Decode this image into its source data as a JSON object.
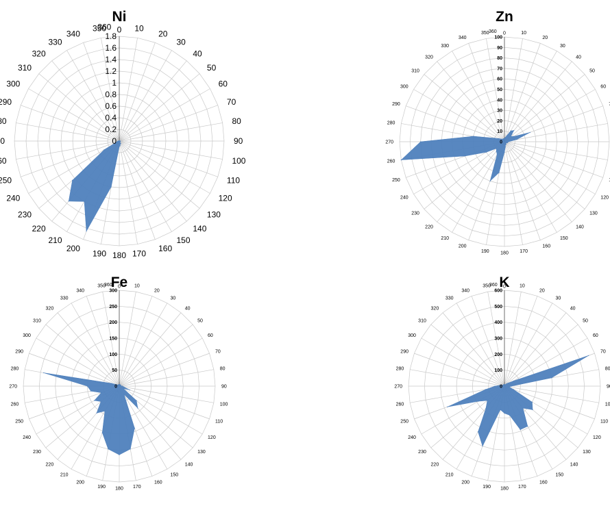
{
  "chart_data": [
    {
      "type": "radar",
      "title": "Ni",
      "categories": [
        "0",
        "10",
        "20",
        "30",
        "40",
        "50",
        "60",
        "70",
        "80",
        "90",
        "100",
        "110",
        "120",
        "130",
        "140",
        "150",
        "160",
        "170",
        "180",
        "190",
        "200",
        "210",
        "220",
        "230",
        "240",
        "250",
        "260",
        "270",
        "280",
        "290",
        "300",
        "310",
        "320",
        "330",
        "340",
        "350",
        "360"
      ],
      "rlim": [
        0,
        1.8
      ],
      "rticks": [
        "0",
        "0.2",
        "0.4",
        "0.6",
        "0.8",
        "1",
        "1.2",
        "1.4",
        "1.6",
        "1.8"
      ],
      "values": [
        0,
        0,
        0,
        0,
        0,
        0,
        0,
        0,
        0,
        0.02,
        0,
        0,
        0.02,
        0,
        0,
        0.05,
        0.05,
        0.08,
        0.1,
        0.8,
        1.65,
        1.2,
        1.35,
        1.05,
        0.3,
        0.05,
        0.03,
        0.02,
        0,
        0,
        0,
        0,
        0,
        0,
        0,
        0,
        0
      ]
    },
    {
      "type": "radar",
      "title": "Zn",
      "categories": [
        "0",
        "10",
        "20",
        "30",
        "40",
        "50",
        "60",
        "70",
        "80",
        "90",
        "100",
        "110",
        "120",
        "130",
        "140",
        "150",
        "160",
        "170",
        "180",
        "190",
        "200",
        "210",
        "220",
        "230",
        "240",
        "250",
        "260",
        "270",
        "280",
        "290",
        "300",
        "310",
        "320",
        "330",
        "340",
        "350",
        "360"
      ],
      "rlim": [
        0,
        100
      ],
      "rticks": [
        "0",
        "10",
        "20",
        "30",
        "40",
        "50",
        "60",
        "70",
        "80",
        "90",
        "100"
      ],
      "values": [
        3,
        4,
        6,
        12,
        14,
        8,
        10,
        26,
        12,
        4,
        3,
        3,
        2,
        2,
        2,
        3,
        3,
        5,
        10,
        30,
        40,
        14,
        12,
        10,
        20,
        40,
        100,
        80,
        30,
        10,
        6,
        4,
        3,
        3,
        3,
        3,
        3
      ]
    },
    {
      "type": "radar",
      "title": "Fe",
      "categories": [
        "0",
        "10",
        "20",
        "30",
        "40",
        "50",
        "60",
        "70",
        "80",
        "90",
        "100",
        "110",
        "120",
        "130",
        "140",
        "150",
        "160",
        "170",
        "180",
        "190",
        "200",
        "210",
        "220",
        "230",
        "240",
        "250",
        "260",
        "270",
        "280",
        "290",
        "300",
        "310",
        "320",
        "330",
        "340",
        "350",
        "360"
      ],
      "rlim": [
        0,
        300
      ],
      "rticks": [
        "0",
        "50",
        "100",
        "150",
        "200",
        "250",
        "300"
      ],
      "values": [
        5,
        5,
        5,
        5,
        5,
        5,
        5,
        5,
        5,
        10,
        15,
        35,
        15,
        70,
        90,
        30,
        140,
        200,
        215,
        200,
        155,
        90,
        110,
        75,
        90,
        60,
        90,
        100,
        240,
        25,
        10,
        5,
        5,
        5,
        5,
        5,
        5
      ]
    },
    {
      "type": "radar",
      "title": "K",
      "categories": [
        "0",
        "10",
        "20",
        "30",
        "40",
        "50",
        "60",
        "70",
        "80",
        "90",
        "100",
        "110",
        "120",
        "130",
        "140",
        "150",
        "160",
        "170",
        "180",
        "190",
        "200",
        "210",
        "220",
        "230",
        "240",
        "250",
        "260",
        "270",
        "280",
        "290",
        "300",
        "310",
        "320",
        "330",
        "340",
        "350",
        "360"
      ],
      "rlim": [
        0,
        600
      ],
      "rticks": [
        "0",
        "100",
        "200",
        "300",
        "400",
        "500",
        "600"
      ],
      "values": [
        10,
        10,
        10,
        10,
        20,
        30,
        65,
        560,
        300,
        45,
        30,
        60,
        200,
        230,
        180,
        290,
        290,
        185,
        170,
        150,
        400,
        330,
        180,
        140,
        190,
        380,
        120,
        60,
        30,
        20,
        10,
        10,
        10,
        10,
        10,
        10,
        10
      ]
    }
  ]
}
